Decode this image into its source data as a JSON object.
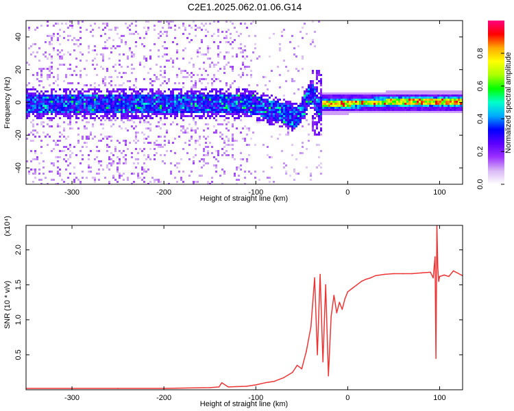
{
  "title": "C2E1.2025.062.01.06.G14",
  "chart_data": [
    {
      "type": "heatmap",
      "title": "C2E1.2025.062.01.06.G14",
      "xlabel": "Height of straight line (km)",
      "ylabel": "Frequency (Hz)",
      "xlim": [
        -350,
        125
      ],
      "ylim": [
        -50,
        50
      ],
      "x_ticks": [
        -300,
        -200,
        -100,
        0,
        100
      ],
      "x_tick_labels": [
        "-300",
        "-200",
        "-100",
        "0",
        "100"
      ],
      "y_ticks": [
        -40,
        -20,
        0,
        20,
        40
      ],
      "y_tick_labels": [
        "-40",
        "-20",
        "0",
        "20",
        "40"
      ],
      "band_center_x": [
        -350,
        -160,
        -110,
        -95,
        -85,
        -75,
        -65,
        -58,
        -52,
        -45,
        -40,
        -37,
        -33,
        -28,
        -20,
        0,
        50,
        125
      ],
      "band_center_y": [
        0,
        0,
        0,
        -2,
        -4,
        -5,
        -7,
        -9,
        -6,
        3,
        6,
        4,
        -3,
        0,
        0,
        0,
        1,
        1
      ],
      "colorbar": {
        "label": "Normalized spectral amplitude",
        "ticks": [
          0.0,
          0.2,
          0.4,
          0.6,
          0.8
        ],
        "tick_labels": [
          "0.0",
          "0.2",
          "0.4",
          "0.6",
          "0.8"
        ],
        "range": [
          0,
          1
        ],
        "colors": [
          "#ffffff",
          "#d9b8f5",
          "#9b30ff",
          "#5a00ff",
          "#0000ff",
          "#00aaff",
          "#00ffcc",
          "#00ff00",
          "#aaff00",
          "#ffff00",
          "#ffaa00",
          "#ff0000",
          "#ff0080"
        ]
      }
    },
    {
      "type": "line",
      "xlabel": "Height of straight line (km)",
      "ylabel": "SNR (10 * v/v)",
      "y_scale_label": "(x10⁴)",
      "xlim": [
        -350,
        125
      ],
      "ylim": [
        0,
        2.35
      ],
      "x_ticks": [
        -300,
        -200,
        -100,
        0,
        100
      ],
      "x_tick_labels": [
        "-300",
        "-200",
        "-100",
        "0",
        "100"
      ],
      "y_ticks": [
        0.5,
        1.0,
        1.5,
        2.0
      ],
      "y_tick_labels": [
        "0.5",
        "1.0",
        "1.5",
        "2.0"
      ],
      "series": [
        {
          "name": "SNR",
          "color": "#ee3333",
          "x": [
            -350,
            -300,
            -250,
            -200,
            -150,
            -140,
            -137,
            -130,
            -110,
            -100,
            -90,
            -80,
            -70,
            -60,
            -55,
            -50,
            -45,
            -40,
            -36,
            -33,
            -30,
            -27,
            -24,
            -21,
            -18,
            -15,
            -12,
            -9,
            -6,
            -3,
            0,
            5,
            10,
            15,
            20,
            25,
            30,
            40,
            50,
            60,
            70,
            80,
            90,
            93,
            95,
            96,
            97,
            98,
            99,
            100,
            105,
            110,
            115,
            125
          ],
          "y": [
            0.02,
            0.02,
            0.02,
            0.02,
            0.03,
            0.04,
            0.1,
            0.04,
            0.05,
            0.07,
            0.1,
            0.12,
            0.17,
            0.25,
            0.35,
            0.3,
            0.55,
            0.9,
            1.6,
            0.5,
            1.65,
            0.4,
            1.5,
            0.2,
            1.05,
            1.35,
            1.1,
            1.25,
            1.15,
            1.3,
            1.4,
            1.45,
            1.5,
            1.55,
            1.58,
            1.6,
            1.63,
            1.65,
            1.66,
            1.66,
            1.66,
            1.67,
            1.68,
            1.6,
            1.9,
            0.45,
            2.35,
            1.75,
            1.55,
            1.62,
            1.64,
            1.62,
            1.7,
            1.63
          ]
        }
      ]
    }
  ]
}
